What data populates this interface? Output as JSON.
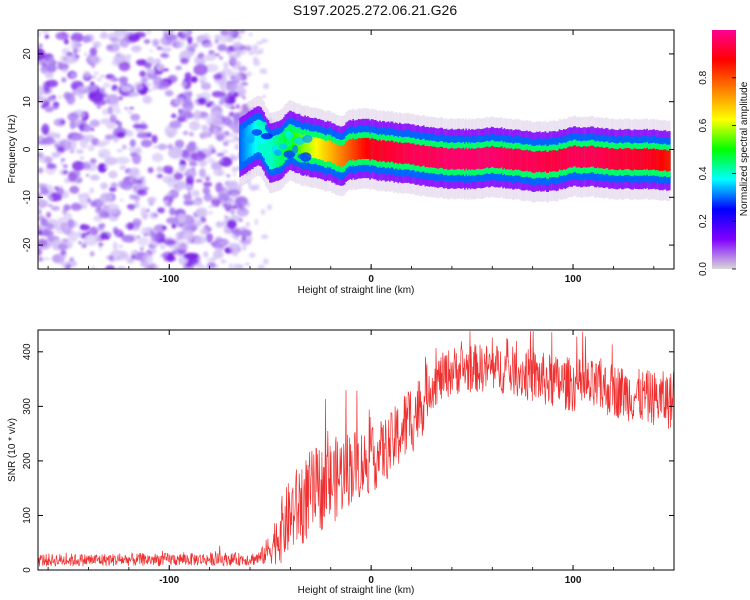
{
  "title": "S197.2025.272.06.21.G26",
  "chart_data": [
    {
      "type": "heatmap",
      "name": "spectrogram",
      "xlabel": "Height of straight line (km)",
      "ylabel": "Frequency (Hz)",
      "xlim": [
        -165,
        150
      ],
      "ylim": [
        -25,
        25
      ],
      "xticks": [
        -100,
        0,
        100
      ],
      "xtick_labels": [
        "-100",
        "0",
        "100"
      ],
      "yticks": [
        20,
        10,
        0,
        -10,
        -20
      ],
      "ytick_labels": [
        "20",
        "10",
        "0",
        "-10",
        "-20"
      ],
      "noise_region_x": [
        -165,
        -65
      ],
      "ridge": {
        "x": [
          -65,
          -60,
          -55,
          -50,
          -45,
          -40,
          -35,
          -30,
          -25,
          -20,
          -15,
          -10,
          -5,
          0,
          10,
          20,
          30,
          40,
          50,
          60,
          70,
          80,
          90,
          100,
          110,
          120,
          130,
          140,
          148
        ],
        "freq": [
          0.5,
          2,
          3,
          -1,
          0,
          2,
          1,
          0.5,
          0,
          -0.5,
          -1.5,
          0,
          0.2,
          0,
          -0.5,
          -1,
          -1.5,
          -2,
          -2,
          -1.5,
          -2,
          -2.5,
          -2.5,
          -1.5,
          -1.5,
          -2,
          -2,
          -2,
          -2.5
        ],
        "amp": [
          0.3,
          0.35,
          0.4,
          0.4,
          0.45,
          0.5,
          0.55,
          0.6,
          0.65,
          0.7,
          0.75,
          0.8,
          0.85,
          0.9,
          0.92,
          0.95,
          0.95,
          0.97,
          0.97,
          0.97,
          0.95,
          0.95,
          0.93,
          0.95,
          0.95,
          0.93,
          0.92,
          0.9,
          0.85
        ]
      }
    },
    {
      "type": "colorbar",
      "name": "amplitude-colorbar",
      "label": "Normalized spectral amplitude",
      "range": [
        0,
        1
      ],
      "ticks": [
        0.0,
        0.2,
        0.4,
        0.6,
        0.8
      ],
      "tick_labels": [
        "0.0",
        "0.2",
        "0.4",
        "0.6",
        "0.8"
      ],
      "colormap": [
        "#d8d8d8",
        "#8000ff",
        "#0000ff",
        "#00ffff",
        "#00ff00",
        "#ffff00",
        "#ff8000",
        "#ff0000",
        "#ff0090"
      ]
    },
    {
      "type": "line",
      "name": "snr-line",
      "xlabel": "Height of straight line (km)",
      "ylabel": "SNR (10 * v/v)",
      "xlim": [
        -165,
        150
      ],
      "ylim": [
        0,
        440
      ],
      "xticks": [
        -100,
        0,
        100
      ],
      "xtick_labels": [
        "-100",
        "0",
        "100"
      ],
      "yticks": [
        0,
        100,
        200,
        300,
        400
      ],
      "ytick_labels": [
        "0",
        "100",
        "200",
        "300",
        "400"
      ],
      "color": "#f03030",
      "envelope": {
        "x": [
          -165,
          -60,
          -55,
          -50,
          -45,
          -40,
          -35,
          -30,
          -20,
          -10,
          0,
          10,
          20,
          25,
          28,
          30,
          40,
          50,
          60,
          70,
          80,
          90,
          100,
          110,
          120,
          130,
          140,
          150
        ],
        "mean": [
          18,
          20,
          22,
          40,
          70,
          100,
          120,
          140,
          160,
          190,
          200,
          230,
          280,
          300,
          330,
          340,
          365,
          370,
          370,
          365,
          355,
          345,
          340,
          335,
          330,
          320,
          315,
          310
        ],
        "spread": [
          12,
          12,
          14,
          30,
          60,
          70,
          80,
          80,
          80,
          70,
          60,
          60,
          70,
          60,
          50,
          45,
          45,
          45,
          45,
          45,
          50,
          50,
          50,
          50,
          50,
          50,
          50,
          55
        ]
      }
    }
  ]
}
